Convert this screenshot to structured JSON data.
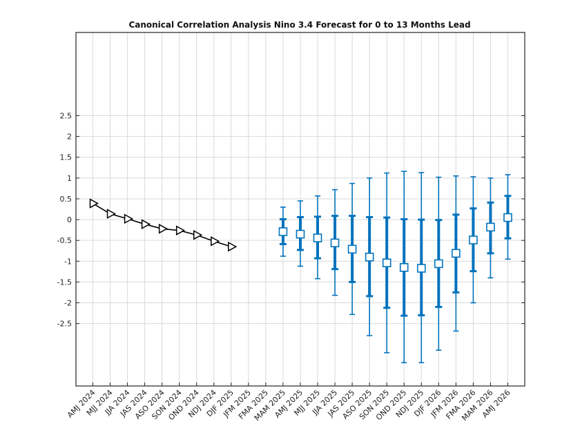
{
  "chart_data": {
    "type": "line",
    "title": "Canonical Correlation Analysis Nino 3.4 Forecast for 0 to 13 Months Lead",
    "xlabel": "",
    "ylabel": "",
    "ylim": [
      -4.0,
      4.5
    ],
    "yticks": [
      -2.5,
      -2,
      -1.5,
      -1,
      -0.5,
      0,
      0.5,
      1,
      1.5,
      2,
      2.5
    ],
    "ytick_labels": [
      "-2.5",
      "-2",
      "-1.5",
      "-1",
      "-0.5",
      "0",
      "0.5",
      "1",
      "1.5",
      "2",
      "2.5"
    ],
    "grid": true,
    "categories": [
      "AMJ 2024",
      "MJJ 2024",
      "JJA 2024",
      "JAS 2024",
      "ASO 2024",
      "SON 2024",
      "OND 2024",
      "NDJ 2024",
      "DJF 2025",
      "JFM 2025",
      "FMA 2025",
      "MAM 2025",
      "AMJ 2025",
      "MJJ 2025",
      "JJA 2025",
      "JAS 2025",
      "ASO 2025",
      "SON 2025",
      "OND 2025",
      "NDJ 2025",
      "DJF 2026",
      "JFM 2026",
      "FMA 2026",
      "MAM 2026",
      "AMJ 2026"
    ],
    "series": [
      {
        "marker": "triangle-right",
        "color": "#000000",
        "x": [
          "AMJ 2024",
          "MJJ 2024",
          "JJA 2024",
          "JAS 2024",
          "ASO 2024",
          "SON 2024",
          "OND 2024",
          "NDJ 2024",
          "DJF 2025"
        ],
        "values": [
          0.39,
          0.14,
          0.02,
          -0.11,
          -0.22,
          -0.26,
          -0.37,
          -0.52,
          -0.65
        ]
      },
      {
        "marker": "square",
        "color": "#0072bd",
        "x": [
          "MAM 2025",
          "AMJ 2025",
          "MJJ 2025",
          "JJA 2025",
          "JAS 2025",
          "ASO 2025",
          "SON 2025",
          "OND 2025",
          "NDJ 2025",
          "DJF 2026",
          "JFM 2026",
          "FMA 2026",
          "MAM 2026",
          "AMJ 2026"
        ],
        "values": [
          -0.29,
          -0.35,
          -0.44,
          -0.56,
          -0.71,
          -0.9,
          -1.04,
          -1.15,
          -1.17,
          -1.06,
          -0.81,
          -0.49,
          -0.18,
          0.05
        ],
        "inner_error": [
          [
            -0.59,
            0.01
          ],
          [
            -0.73,
            0.06
          ],
          [
            -0.93,
            0.07
          ],
          [
            -1.19,
            0.09
          ],
          [
            -1.5,
            0.09
          ],
          [
            -1.84,
            0.06
          ],
          [
            -2.12,
            0.05
          ],
          [
            -2.31,
            0.01
          ],
          [
            -2.3,
            0.0
          ],
          [
            -2.1,
            -0.01
          ],
          [
            -1.75,
            0.12
          ],
          [
            -1.24,
            0.27
          ],
          [
            -0.81,
            0.41
          ],
          [
            -0.45,
            0.57
          ]
        ],
        "outer_error": [
          [
            -0.88,
            0.3
          ],
          [
            -1.12,
            0.45
          ],
          [
            -1.42,
            0.57
          ],
          [
            -1.82,
            0.72
          ],
          [
            -2.28,
            0.87
          ],
          [
            -2.79,
            1.0
          ],
          [
            -3.2,
            1.12
          ],
          [
            -3.44,
            1.16
          ],
          [
            -3.44,
            1.13
          ],
          [
            -3.14,
            1.02
          ],
          [
            -2.68,
            1.05
          ],
          [
            -2.0,
            1.03
          ],
          [
            -1.4,
            1.0
          ],
          [
            -0.95,
            1.08
          ]
        ]
      }
    ]
  }
}
